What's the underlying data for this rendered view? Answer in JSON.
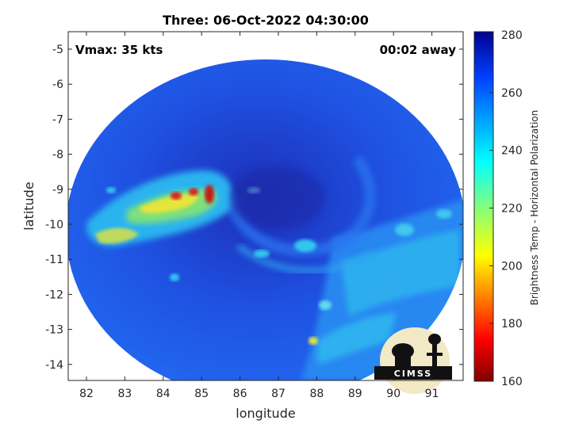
{
  "title": "Three: 06-Oct-2022 04:30:00",
  "annotations": {
    "vmax": "Vmax: 35 kts",
    "time_away": "00:02 away"
  },
  "axes": {
    "xlabel": "longitude",
    "ylabel": "latitude",
    "x_ticks": [
      "82",
      "83",
      "84",
      "85",
      "86",
      "87",
      "88",
      "89",
      "90",
      "91"
    ],
    "y_ticks": [
      "-5",
      "-6",
      "-7",
      "-8",
      "-9",
      "-10",
      "-11",
      "-12",
      "-13",
      "-14"
    ]
  },
  "colorbar": {
    "label": "Brightness Temp - Horizontal Polarization",
    "ticks": [
      "280",
      "260",
      "240",
      "220",
      "200",
      "180",
      "160"
    ]
  },
  "logo": {
    "text": "CIMSS"
  },
  "colors": {
    "background_scene": "#1f4fe0",
    "cold_core": "#1a2fb8",
    "warm_band": "#23c0f0",
    "hot_spots": "#d81a12"
  }
}
